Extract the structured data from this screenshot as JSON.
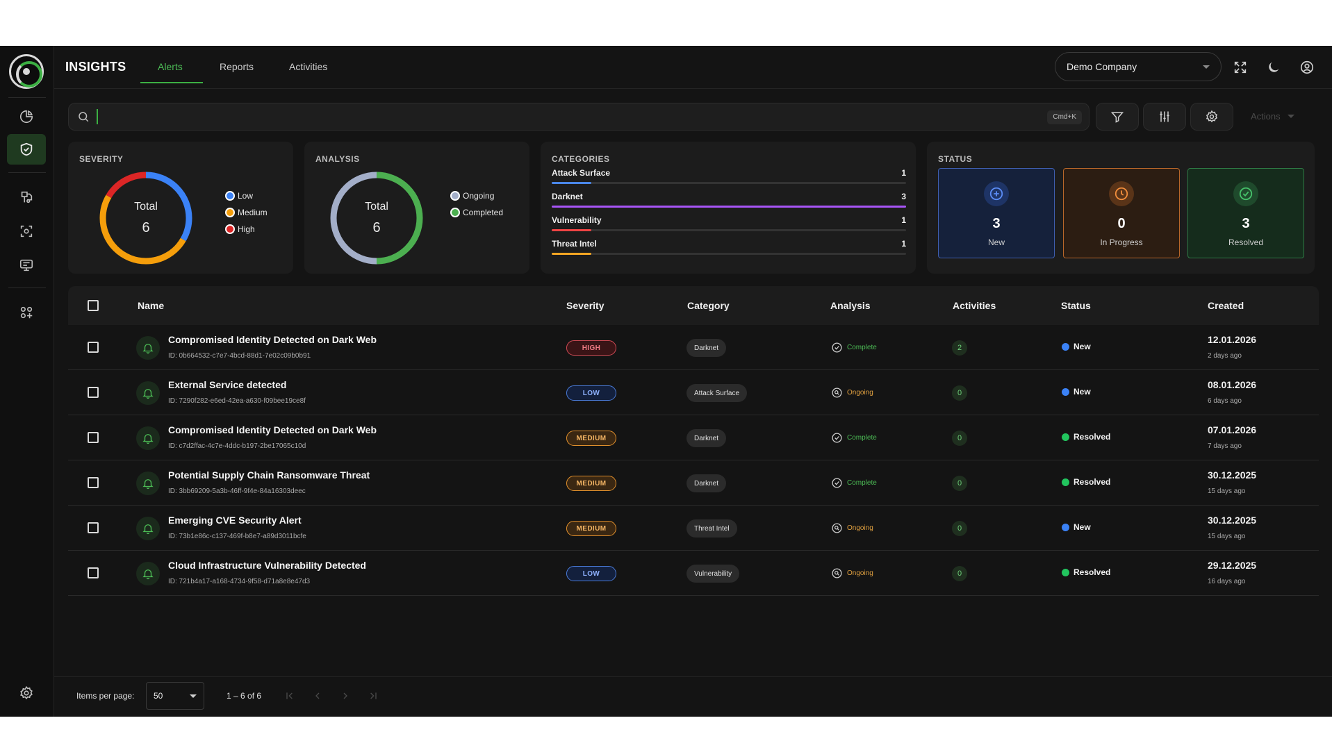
{
  "app": {
    "brand": "INSIGHTS",
    "tabs": [
      {
        "label": "Alerts",
        "active": true
      },
      {
        "label": "Reports",
        "active": false
      },
      {
        "label": "Activities",
        "active": false
      }
    ],
    "company": "Demo Company",
    "accent": "#3cb043"
  },
  "sidebar": {
    "icons": [
      "pie-chart-icon",
      "shield-check-icon",
      "threat-icon",
      "scan-icon",
      "monitor-icon",
      "apps-icon",
      "gear-icon"
    ]
  },
  "search": {
    "value": "",
    "shortcut": "Cmd+K",
    "actions_label": "Actions"
  },
  "severity_card": {
    "title": "SEVERITY",
    "total_label": "Total",
    "total": "6",
    "legend": [
      {
        "label": "Low",
        "color": "#3b82f6",
        "value": 2
      },
      {
        "label": "Medium",
        "color": "#f59e0b",
        "value": 3
      },
      {
        "label": "High",
        "color": "#dc2626",
        "value": 1
      }
    ]
  },
  "analysis_card": {
    "title": "ANALYSIS",
    "total_label": "Total",
    "total": "6",
    "legend": [
      {
        "label": "Ongoing",
        "color": "#a3aec8",
        "value": 3
      },
      {
        "label": "Completed",
        "color": "#4caf50",
        "value": 3
      }
    ]
  },
  "categories_card": {
    "title": "CATEGORIES",
    "max": 3,
    "items": [
      {
        "label": "Attack Surface",
        "count": "1",
        "value": 1,
        "color": "#4a86e8"
      },
      {
        "label": "Darknet",
        "count": "3",
        "value": 3,
        "color": "#a855f7"
      },
      {
        "label": "Vulnerability",
        "count": "1",
        "value": 1,
        "color": "#ef4444"
      },
      {
        "label": "Threat Intel",
        "count": "1",
        "value": 1,
        "color": "#f5a623"
      }
    ]
  },
  "status_card": {
    "title": "STATUS",
    "items": [
      {
        "value": "3",
        "label": "New",
        "bg": "#15213b",
        "border": "#3f5fb0",
        "icon_color": "#5b8cf5"
      },
      {
        "value": "0",
        "label": "In Progress",
        "bg": "#2c1d12",
        "border": "#b8672a",
        "icon_color": "#f08d3c"
      },
      {
        "value": "3",
        "label": "Resolved",
        "bg": "#152c1c",
        "border": "#2f7a45",
        "icon_color": "#46c06a"
      }
    ]
  },
  "table": {
    "headers": [
      "Name",
      "Severity",
      "Category",
      "Analysis",
      "Activities",
      "Status",
      "Created"
    ],
    "rows": [
      {
        "name": "Compromised Identity Detected on Dark Web",
        "id": "ID: 0b664532-c7e7-4bcd-88d1-7e02c09b0b91",
        "severity": "HIGH",
        "category": "Darknet",
        "analysis": "Complete",
        "activities": "2",
        "status": "New",
        "created": "12.01.2026",
        "ago": "2 days ago"
      },
      {
        "name": "External Service detected",
        "id": "ID: 7290f282-e6ed-42ea-a630-f09bee19ce8f",
        "severity": "LOW",
        "category": "Attack Surface",
        "analysis": "Ongoing",
        "activities": "0",
        "status": "New",
        "created": "08.01.2026",
        "ago": "6 days ago"
      },
      {
        "name": "Compromised Identity Detected on Dark Web",
        "id": "ID: c7d2ffac-4c7e-4ddc-b197-2be17065c10d",
        "severity": "MEDIUM",
        "category": "Darknet",
        "analysis": "Complete",
        "activities": "0",
        "status": "Resolved",
        "created": "07.01.2026",
        "ago": "7 days ago"
      },
      {
        "name": "Potential Supply Chain Ransomware Threat",
        "id": "ID: 3bb69209-5a3b-46ff-9f4e-84a16303deec",
        "severity": "MEDIUM",
        "category": "Darknet",
        "analysis": "Complete",
        "activities": "0",
        "status": "Resolved",
        "created": "30.12.2025",
        "ago": "15 days ago"
      },
      {
        "name": "Emerging CVE Security Alert",
        "id": "ID: 73b1e86c-c137-469f-b8e7-a89d3011bcfe",
        "severity": "MEDIUM",
        "category": "Threat Intel",
        "analysis": "Ongoing",
        "activities": "0",
        "status": "New",
        "created": "30.12.2025",
        "ago": "15 days ago"
      },
      {
        "name": "Cloud Infrastructure Vulnerability Detected",
        "id": "ID: 721b4a17-a168-4734-9f58-d71a8e8e47d3",
        "severity": "LOW",
        "category": "Vulnerability",
        "analysis": "Ongoing",
        "activities": "0",
        "status": "Resolved",
        "created": "29.12.2025",
        "ago": "16 days ago"
      }
    ]
  },
  "pagination": {
    "items_per_page_label": "Items per page:",
    "items_per_page": "50",
    "range": "1 – 6 of 6"
  },
  "colors": {
    "status_new": "#3b82f6",
    "status_resolved": "#22c55e",
    "complete": "#4cbb55",
    "ongoing": "#e0a040"
  }
}
